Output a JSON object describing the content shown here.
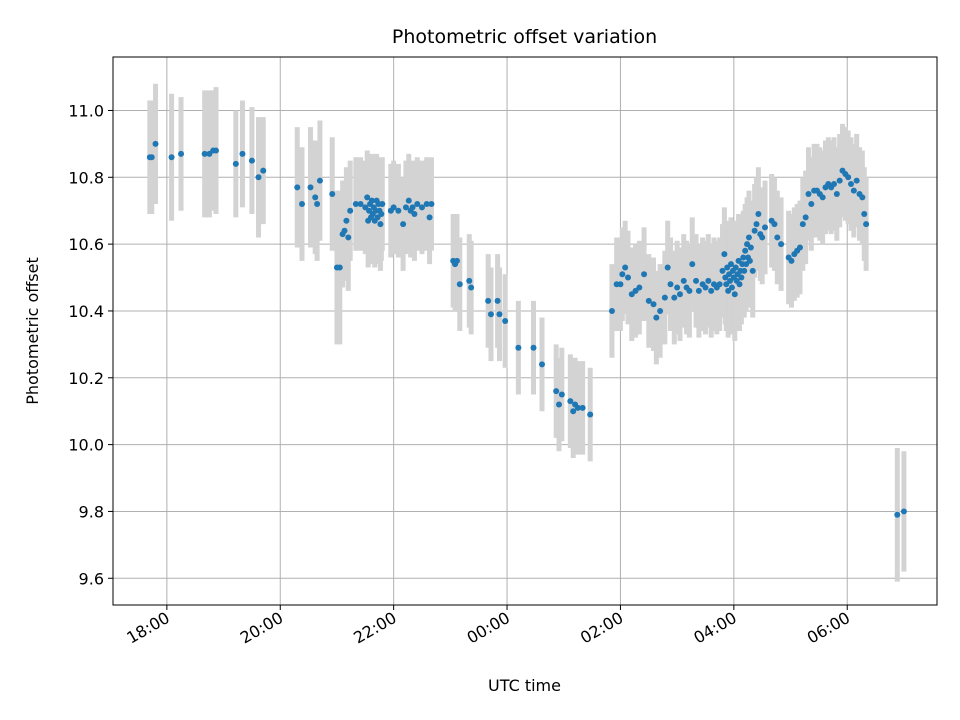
{
  "chart_data": {
    "type": "scatter",
    "title": "Photometric offset variation",
    "xlabel": "UTC time",
    "ylabel": "Photometric offset",
    "xlim": [
      "17:03",
      "07:35"
    ],
    "ylim": [
      9.52,
      11.16
    ],
    "grid": true,
    "x_ticks": [
      "18:00",
      "20:00",
      "22:00",
      "00:00",
      "02:00",
      "04:00",
      "06:00"
    ],
    "y_ticks": [
      "9.6",
      "9.8",
      "10.0",
      "10.2",
      "10.4",
      "10.6",
      "10.8",
      "11.0"
    ],
    "colors": {
      "points": "#1f77b4",
      "errorbars": "#d3d3d3",
      "grid": "#b0b0b0"
    },
    "series": [
      {
        "points": [
          {
            "x": "17:42",
            "y": 10.86,
            "err": 0.17
          },
          {
            "x": "17:44",
            "y": 10.86,
            "err": 0.17
          },
          {
            "x": "17:48",
            "y": 10.9,
            "err": 0.18
          },
          {
            "x": "18:05",
            "y": 10.86,
            "err": 0.19
          },
          {
            "x": "18:15",
            "y": 10.87,
            "err": 0.17
          },
          {
            "x": "18:40",
            "y": 10.87,
            "err": 0.19
          },
          {
            "x": "18:45",
            "y": 10.87,
            "err": 0.19
          },
          {
            "x": "18:49",
            "y": 10.88,
            "err": 0.18
          },
          {
            "x": "18:52",
            "y": 10.88,
            "err": 0.19
          },
          {
            "x": "19:13",
            "y": 10.84,
            "err": 0.16
          },
          {
            "x": "19:20",
            "y": 10.87,
            "err": 0.16
          },
          {
            "x": "19:30",
            "y": 10.85,
            "err": 0.16
          },
          {
            "x": "19:37",
            "y": 10.8,
            "err": 0.18
          },
          {
            "x": "19:42",
            "y": 10.82,
            "err": 0.16
          },
          {
            "x": "20:18",
            "y": 10.77,
            "err": 0.18
          },
          {
            "x": "20:23",
            "y": 10.72,
            "err": 0.17
          },
          {
            "x": "20:32",
            "y": 10.77,
            "err": 0.18
          },
          {
            "x": "20:37",
            "y": 10.74,
            "err": 0.17
          },
          {
            "x": "20:39",
            "y": 10.72,
            "err": 0.17
          },
          {
            "x": "20:42",
            "y": 10.79,
            "err": 0.18
          },
          {
            "x": "20:55",
            "y": 10.75,
            "err": 0.17
          },
          {
            "x": "21:00",
            "y": 10.53,
            "err": 0.23
          },
          {
            "x": "21:03",
            "y": 10.53,
            "err": 0.23
          },
          {
            "x": "21:06",
            "y": 10.63,
            "err": 0.16
          },
          {
            "x": "21:08",
            "y": 10.64,
            "err": 0.15
          },
          {
            "x": "21:10",
            "y": 10.67,
            "err": 0.16
          },
          {
            "x": "21:12",
            "y": 10.62,
            "err": 0.16
          },
          {
            "x": "21:14",
            "y": 10.7,
            "err": 0.15
          },
          {
            "x": "21:20",
            "y": 10.72,
            "err": 0.14
          },
          {
            "x": "21:25",
            "y": 10.72,
            "err": 0.14
          },
          {
            "x": "21:30",
            "y": 10.71,
            "err": 0.14
          },
          {
            "x": "21:32",
            "y": 10.74,
            "err": 0.14
          },
          {
            "x": "21:33",
            "y": 10.67,
            "err": 0.14
          },
          {
            "x": "21:34",
            "y": 10.7,
            "err": 0.14
          },
          {
            "x": "21:35",
            "y": 10.72,
            "err": 0.14
          },
          {
            "x": "21:36",
            "y": 10.68,
            "err": 0.14
          },
          {
            "x": "21:37",
            "y": 10.73,
            "err": 0.14
          },
          {
            "x": "21:38",
            "y": 10.69,
            "err": 0.14
          },
          {
            "x": "21:39",
            "y": 10.71,
            "err": 0.14
          },
          {
            "x": "21:40",
            "y": 10.67,
            "err": 0.14
          },
          {
            "x": "21:41",
            "y": 10.7,
            "err": 0.14
          },
          {
            "x": "21:42",
            "y": 10.73,
            "err": 0.14
          },
          {
            "x": "21:43",
            "y": 10.68,
            "err": 0.14
          },
          {
            "x": "21:44",
            "y": 10.72,
            "err": 0.14
          },
          {
            "x": "21:45",
            "y": 10.7,
            "err": 0.14
          },
          {
            "x": "21:46",
            "y": 10.66,
            "err": 0.14
          },
          {
            "x": "21:47",
            "y": 10.69,
            "err": 0.14
          },
          {
            "x": "21:48",
            "y": 10.72,
            "err": 0.14
          },
          {
            "x": "21:57",
            "y": 10.7,
            "err": 0.14
          },
          {
            "x": "22:00",
            "y": 10.71,
            "err": 0.14
          },
          {
            "x": "22:05",
            "y": 10.7,
            "err": 0.14
          },
          {
            "x": "22:10",
            "y": 10.66,
            "err": 0.14
          },
          {
            "x": "22:13",
            "y": 10.71,
            "err": 0.14
          },
          {
            "x": "22:16",
            "y": 10.73,
            "err": 0.14
          },
          {
            "x": "22:18",
            "y": 10.7,
            "err": 0.14
          },
          {
            "x": "22:20",
            "y": 10.71,
            "err": 0.14
          },
          {
            "x": "22:22",
            "y": 10.69,
            "err": 0.14
          },
          {
            "x": "22:25",
            "y": 10.72,
            "err": 0.14
          },
          {
            "x": "22:30",
            "y": 10.71,
            "err": 0.14
          },
          {
            "x": "22:35",
            "y": 10.72,
            "err": 0.14
          },
          {
            "x": "22:38",
            "y": 10.68,
            "err": 0.14
          },
          {
            "x": "22:40",
            "y": 10.72,
            "err": 0.14
          },
          {
            "x": "23:03",
            "y": 10.55,
            "err": 0.14
          },
          {
            "x": "23:05",
            "y": 10.54,
            "err": 0.14
          },
          {
            "x": "23:07",
            "y": 10.55,
            "err": 0.14
          },
          {
            "x": "23:10",
            "y": 10.48,
            "err": 0.14
          },
          {
            "x": "23:20",
            "y": 10.49,
            "err": 0.14
          },
          {
            "x": "23:22",
            "y": 10.47,
            "err": 0.14
          },
          {
            "x": "23:40",
            "y": 10.43,
            "err": 0.14
          },
          {
            "x": "23:43",
            "y": 10.39,
            "err": 0.14
          },
          {
            "x": "23:50",
            "y": 10.43,
            "err": 0.14
          },
          {
            "x": "23:52",
            "y": 10.39,
            "err": 0.14
          },
          {
            "x": "23:58",
            "y": 10.37,
            "err": 0.14
          },
          {
            "x": "00:12",
            "y": 10.29,
            "err": 0.14
          },
          {
            "x": "00:28",
            "y": 10.29,
            "err": 0.14
          },
          {
            "x": "00:37",
            "y": 10.24,
            "err": 0.14
          },
          {
            "x": "00:52",
            "y": 10.16,
            "err": 0.14
          },
          {
            "x": "00:55",
            "y": 10.12,
            "err": 0.14
          },
          {
            "x": "00:58",
            "y": 10.15,
            "err": 0.14
          },
          {
            "x": "01:07",
            "y": 10.13,
            "err": 0.14
          },
          {
            "x": "01:10",
            "y": 10.1,
            "err": 0.14
          },
          {
            "x": "01:12",
            "y": 10.12,
            "err": 0.14
          },
          {
            "x": "01:15",
            "y": 10.11,
            "err": 0.14
          },
          {
            "x": "01:20",
            "y": 10.11,
            "err": 0.14
          },
          {
            "x": "01:28",
            "y": 10.09,
            "err": 0.14
          },
          {
            "x": "01:51",
            "y": 10.4,
            "err": 0.14
          },
          {
            "x": "01:56",
            "y": 10.48,
            "err": 0.14
          },
          {
            "x": "02:00",
            "y": 10.48,
            "err": 0.14
          },
          {
            "x": "02:02",
            "y": 10.51,
            "err": 0.14
          },
          {
            "x": "02:05",
            "y": 10.53,
            "err": 0.14
          },
          {
            "x": "02:08",
            "y": 10.5,
            "err": 0.14
          },
          {
            "x": "02:12",
            "y": 10.45,
            "err": 0.14
          },
          {
            "x": "02:16",
            "y": 10.46,
            "err": 0.14
          },
          {
            "x": "02:20",
            "y": 10.47,
            "err": 0.14
          },
          {
            "x": "02:25",
            "y": 10.51,
            "err": 0.14
          },
          {
            "x": "02:30",
            "y": 10.43,
            "err": 0.14
          },
          {
            "x": "02:35",
            "y": 10.42,
            "err": 0.14
          },
          {
            "x": "02:38",
            "y": 10.38,
            "err": 0.14
          },
          {
            "x": "02:42",
            "y": 10.4,
            "err": 0.14
          },
          {
            "x": "02:47",
            "y": 10.44,
            "err": 0.14
          },
          {
            "x": "02:50",
            "y": 10.53,
            "err": 0.14
          },
          {
            "x": "02:53",
            "y": 10.48,
            "err": 0.14
          },
          {
            "x": "02:57",
            "y": 10.44,
            "err": 0.14
          },
          {
            "x": "03:00",
            "y": 10.47,
            "err": 0.14
          },
          {
            "x": "03:03",
            "y": 10.45,
            "err": 0.14
          },
          {
            "x": "03:07",
            "y": 10.49,
            "err": 0.14
          },
          {
            "x": "03:10",
            "y": 10.47,
            "err": 0.14
          },
          {
            "x": "03:13",
            "y": 10.46,
            "err": 0.14
          },
          {
            "x": "03:16",
            "y": 10.54,
            "err": 0.14
          },
          {
            "x": "03:20",
            "y": 10.49,
            "err": 0.14
          },
          {
            "x": "03:23",
            "y": 10.46,
            "err": 0.14
          },
          {
            "x": "03:27",
            "y": 10.48,
            "err": 0.14
          },
          {
            "x": "03:30",
            "y": 10.47,
            "err": 0.14
          },
          {
            "x": "03:33",
            "y": 10.49,
            "err": 0.14
          },
          {
            "x": "03:36",
            "y": 10.46,
            "err": 0.14
          },
          {
            "x": "03:39",
            "y": 10.48,
            "err": 0.14
          },
          {
            "x": "03:42",
            "y": 10.47,
            "err": 0.14
          },
          {
            "x": "03:45",
            "y": 10.48,
            "err": 0.14
          },
          {
            "x": "03:48",
            "y": 10.52,
            "err": 0.14
          },
          {
            "x": "03:50",
            "y": 10.57,
            "err": 0.14
          },
          {
            "x": "03:51",
            "y": 10.5,
            "err": 0.14
          },
          {
            "x": "03:52",
            "y": 10.48,
            "err": 0.14
          },
          {
            "x": "03:53",
            "y": 10.53,
            "err": 0.14
          },
          {
            "x": "03:54",
            "y": 10.46,
            "err": 0.14
          },
          {
            "x": "03:55",
            "y": 10.51,
            "err": 0.14
          },
          {
            "x": "03:56",
            "y": 10.49,
            "err": 0.14
          },
          {
            "x": "03:57",
            "y": 10.54,
            "err": 0.14
          },
          {
            "x": "03:58",
            "y": 10.47,
            "err": 0.14
          },
          {
            "x": "03:59",
            "y": 10.52,
            "err": 0.14
          },
          {
            "x": "04:00",
            "y": 10.5,
            "err": 0.14
          },
          {
            "x": "04:01",
            "y": 10.45,
            "err": 0.14
          },
          {
            "x": "04:02",
            "y": 10.53,
            "err": 0.14
          },
          {
            "x": "04:03",
            "y": 10.49,
            "err": 0.14
          },
          {
            "x": "04:04",
            "y": 10.51,
            "err": 0.14
          },
          {
            "x": "04:05",
            "y": 10.55,
            "err": 0.14
          },
          {
            "x": "04:06",
            "y": 10.48,
            "err": 0.14
          },
          {
            "x": "04:07",
            "y": 10.52,
            "err": 0.14
          },
          {
            "x": "04:08",
            "y": 10.5,
            "err": 0.14
          },
          {
            "x": "04:09",
            "y": 10.54,
            "err": 0.14
          },
          {
            "x": "04:10",
            "y": 10.56,
            "err": 0.14
          },
          {
            "x": "04:11",
            "y": 10.52,
            "err": 0.14
          },
          {
            "x": "04:12",
            "y": 10.58,
            "err": 0.14
          },
          {
            "x": "04:13",
            "y": 10.54,
            "err": 0.14
          },
          {
            "x": "04:14",
            "y": 10.6,
            "err": 0.14
          },
          {
            "x": "04:15",
            "y": 10.56,
            "err": 0.14
          },
          {
            "x": "04:16",
            "y": 10.62,
            "err": 0.14
          },
          {
            "x": "04:17",
            "y": 10.55,
            "err": 0.14
          },
          {
            "x": "04:18",
            "y": 10.59,
            "err": 0.14
          },
          {
            "x": "04:20",
            "y": 10.52,
            "err": 0.14
          },
          {
            "x": "04:22",
            "y": 10.64,
            "err": 0.14
          },
          {
            "x": "04:24",
            "y": 10.66,
            "err": 0.14
          },
          {
            "x": "04:26",
            "y": 10.69,
            "err": 0.14
          },
          {
            "x": "04:28",
            "y": 10.63,
            "err": 0.14
          },
          {
            "x": "04:30",
            "y": 10.62,
            "err": 0.14
          },
          {
            "x": "04:33",
            "y": 10.65,
            "err": 0.14
          },
          {
            "x": "04:40",
            "y": 10.67,
            "err": 0.14
          },
          {
            "x": "04:43",
            "y": 10.66,
            "err": 0.14
          },
          {
            "x": "04:46",
            "y": 10.62,
            "err": 0.14
          },
          {
            "x": "04:50",
            "y": 10.6,
            "err": 0.14
          },
          {
            "x": "04:58",
            "y": 10.56,
            "err": 0.14
          },
          {
            "x": "05:01",
            "y": 10.55,
            "err": 0.14
          },
          {
            "x": "05:04",
            "y": 10.57,
            "err": 0.14
          },
          {
            "x": "05:07",
            "y": 10.58,
            "err": 0.14
          },
          {
            "x": "05:10",
            "y": 10.59,
            "err": 0.14
          },
          {
            "x": "05:13",
            "y": 10.66,
            "err": 0.14
          },
          {
            "x": "05:16",
            "y": 10.68,
            "err": 0.14
          },
          {
            "x": "05:19",
            "y": 10.75,
            "err": 0.14
          },
          {
            "x": "05:22",
            "y": 10.72,
            "err": 0.14
          },
          {
            "x": "05:25",
            "y": 10.76,
            "err": 0.14
          },
          {
            "x": "05:28",
            "y": 10.76,
            "err": 0.14
          },
          {
            "x": "05:31",
            "y": 10.75,
            "err": 0.14
          },
          {
            "x": "05:34",
            "y": 10.74,
            "err": 0.14
          },
          {
            "x": "05:37",
            "y": 10.77,
            "err": 0.14
          },
          {
            "x": "05:40",
            "y": 10.78,
            "err": 0.14
          },
          {
            "x": "05:43",
            "y": 10.77,
            "err": 0.14
          },
          {
            "x": "05:46",
            "y": 10.78,
            "err": 0.14
          },
          {
            "x": "05:49",
            "y": 10.75,
            "err": 0.14
          },
          {
            "x": "05:52",
            "y": 10.79,
            "err": 0.14
          },
          {
            "x": "05:55",
            "y": 10.82,
            "err": 0.14
          },
          {
            "x": "05:58",
            "y": 10.81,
            "err": 0.14
          },
          {
            "x": "06:01",
            "y": 10.8,
            "err": 0.14
          },
          {
            "x": "06:04",
            "y": 10.78,
            "err": 0.14
          },
          {
            "x": "06:07",
            "y": 10.76,
            "err": 0.14
          },
          {
            "x": "06:10",
            "y": 10.79,
            "err": 0.14
          },
          {
            "x": "06:13",
            "y": 10.75,
            "err": 0.14
          },
          {
            "x": "06:16",
            "y": 10.74,
            "err": 0.14
          },
          {
            "x": "06:18",
            "y": 10.69,
            "err": 0.14
          },
          {
            "x": "06:20",
            "y": 10.66,
            "err": 0.14
          },
          {
            "x": "06:53",
            "y": 9.79,
            "err": 0.2
          },
          {
            "x": "07:00",
            "y": 9.8,
            "err": 0.18
          }
        ]
      }
    ]
  }
}
